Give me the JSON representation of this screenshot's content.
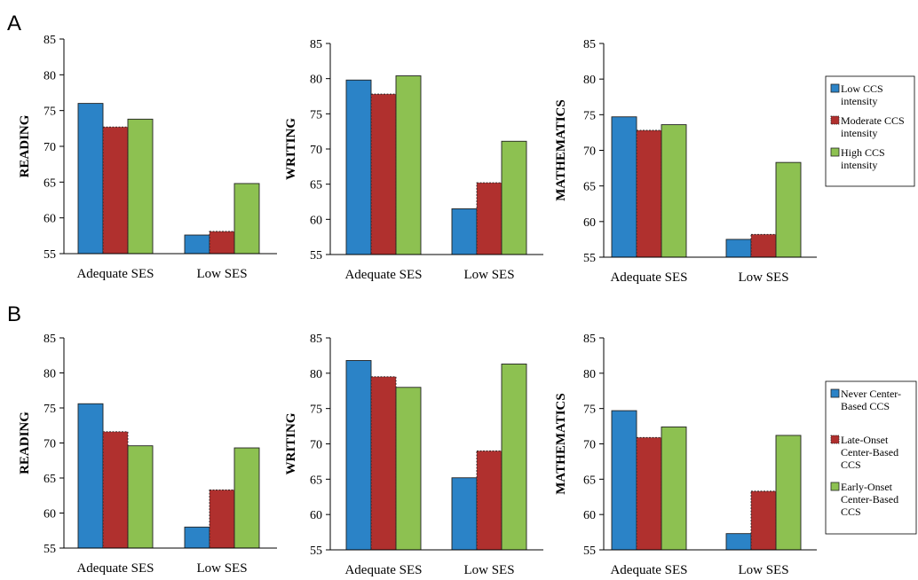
{
  "colors": {
    "blue": "#2b83c7",
    "red": "#b0302e",
    "green": "#8dc151"
  },
  "chart_data": [
    {
      "panel": "A",
      "type": "bar",
      "ylabel": "READING",
      "ylim": [
        55,
        85
      ],
      "yticks": [
        55,
        60,
        65,
        70,
        75,
        80,
        85
      ],
      "categories": [
        "Adequate SES",
        "Low SES"
      ],
      "series": [
        {
          "name": "Low CCS intensity",
          "values": [
            76.0,
            57.6
          ]
        },
        {
          "name": "Moderate CCS intensity",
          "values": [
            72.7,
            58.1
          ]
        },
        {
          "name": "High CCS intensity",
          "values": [
            73.8,
            64.8
          ]
        }
      ]
    },
    {
      "panel": "A",
      "type": "bar",
      "ylabel": "WRITING",
      "ylim": [
        55,
        85
      ],
      "yticks": [
        55,
        60,
        65,
        70,
        75,
        80,
        85
      ],
      "categories": [
        "Adequate SES",
        "Low SES"
      ],
      "series": [
        {
          "name": "Low CCS intensity",
          "values": [
            79.8,
            61.5
          ]
        },
        {
          "name": "Moderate CCS intensity",
          "values": [
            77.8,
            65.2
          ]
        },
        {
          "name": "High CCS intensity",
          "values": [
            80.4,
            71.1
          ]
        }
      ]
    },
    {
      "panel": "A",
      "type": "bar",
      "ylabel": "MATHEMATICS",
      "ylim": [
        55,
        85
      ],
      "yticks": [
        55,
        60,
        65,
        70,
        75,
        80,
        85
      ],
      "categories": [
        "Adequate SES",
        "Low SES"
      ],
      "series": [
        {
          "name": "Low CCS intensity",
          "values": [
            74.7,
            57.5
          ]
        },
        {
          "name": "Moderate CCS intensity",
          "values": [
            72.8,
            58.2
          ]
        },
        {
          "name": "High CCS intensity",
          "values": [
            73.6,
            68.3
          ]
        }
      ]
    },
    {
      "panel": "B",
      "type": "bar",
      "ylabel": "READING",
      "ylim": [
        55,
        85
      ],
      "yticks": [
        55,
        60,
        65,
        70,
        75,
        80,
        85
      ],
      "categories": [
        "Adequate SES",
        "Low SES"
      ],
      "series": [
        {
          "name": "Never Center-Based CCS",
          "values": [
            75.6,
            58.0
          ]
        },
        {
          "name": "Late-Onset Center-Based CCS",
          "values": [
            71.6,
            63.3
          ]
        },
        {
          "name": "Early-Onset Center-Based CCS",
          "values": [
            69.6,
            69.3
          ]
        }
      ]
    },
    {
      "panel": "B",
      "type": "bar",
      "ylabel": "WRITING",
      "ylim": [
        55,
        85
      ],
      "yticks": [
        55,
        60,
        65,
        70,
        75,
        80,
        85
      ],
      "categories": [
        "Adequate SES",
        "Low SES"
      ],
      "series": [
        {
          "name": "Never Center-Based CCS",
          "values": [
            81.8,
            65.2
          ]
        },
        {
          "name": "Late-Onset Center-Based CCS",
          "values": [
            79.5,
            69.0
          ]
        },
        {
          "name": "Early-Onset Center-Based CCS",
          "values": [
            78.0,
            81.3
          ]
        }
      ]
    },
    {
      "panel": "B",
      "type": "bar",
      "ylabel": "MATHEMATICS",
      "ylim": [
        55,
        85
      ],
      "yticks": [
        55,
        60,
        65,
        70,
        75,
        80,
        85
      ],
      "categories": [
        "Adequate SES",
        "Low SES"
      ],
      "series": [
        {
          "name": "Never Center-Based CCS",
          "values": [
            74.7,
            57.3
          ]
        },
        {
          "name": "Late-Onset Center-Based CCS",
          "values": [
            70.9,
            63.3
          ]
        },
        {
          "name": "Early-Onset Center-Based CCS",
          "values": [
            72.4,
            71.2
          ]
        }
      ]
    }
  ],
  "legends": {
    "A": {
      "items": [
        [
          "Low CCS",
          "intensity"
        ],
        [
          "Moderate CCS",
          "intensity"
        ],
        [
          "High CCS",
          "intensity"
        ]
      ]
    },
    "B": {
      "items": [
        [
          "Never Center-",
          "Based CCS"
        ],
        [
          "Late-Onset",
          "Center-Based",
          "CCS"
        ],
        [
          "Early-Onset",
          "Center-Based",
          "CCS"
        ]
      ]
    }
  },
  "panel_labels": [
    "A",
    "B"
  ]
}
